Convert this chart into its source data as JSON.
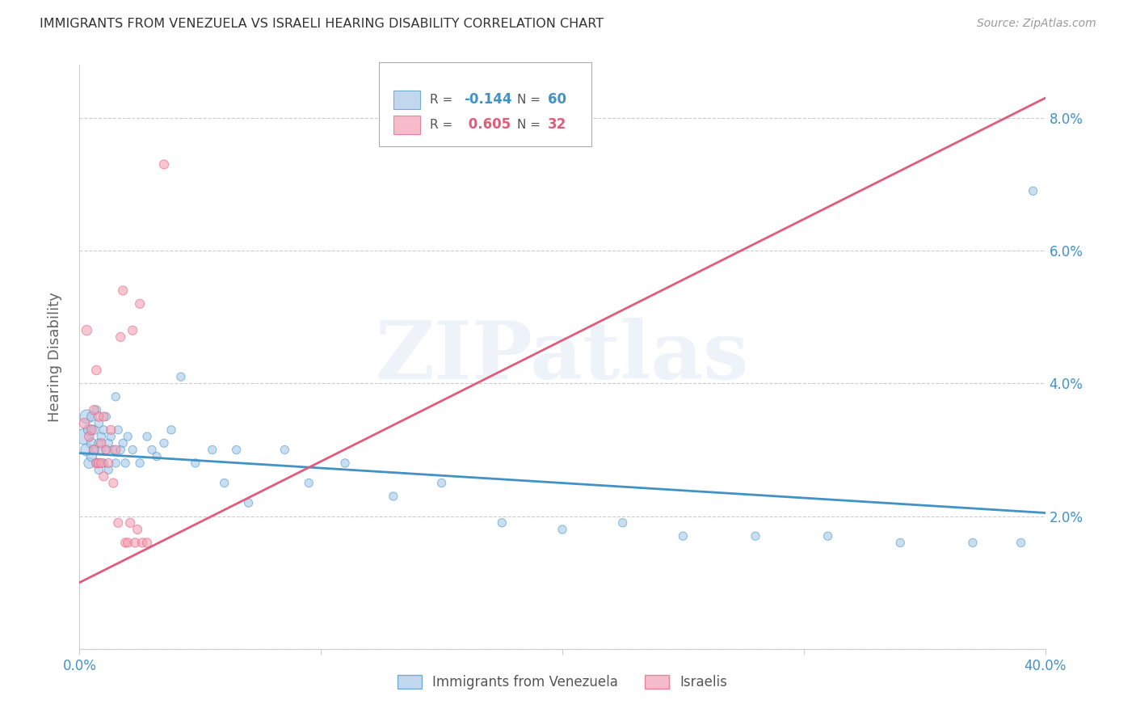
{
  "title": "IMMIGRANTS FROM VENEZUELA VS ISRAELI HEARING DISABILITY CORRELATION CHART",
  "source": "Source: ZipAtlas.com",
  "ylabel": "Hearing Disability",
  "watermark": "ZIPatlas",
  "xlim": [
    0.0,
    0.4
  ],
  "ylim": [
    0.0,
    0.088
  ],
  "xticks": [
    0.0,
    0.1,
    0.2,
    0.3,
    0.4
  ],
  "xtick_labels": [
    "0.0%",
    "",
    "",
    "",
    "40.0%"
  ],
  "yticks": [
    0.0,
    0.02,
    0.04,
    0.06,
    0.08
  ],
  "ytick_labels_right": [
    "",
    "2.0%",
    "4.0%",
    "6.0%",
    "8.0%"
  ],
  "blue_color": "#a8c8e8",
  "pink_color": "#f4a0b5",
  "line_blue": "#4292c6",
  "line_pink": "#e05c7a",
  "blue_scatter_x": [
    0.002,
    0.003,
    0.003,
    0.004,
    0.004,
    0.005,
    0.005,
    0.005,
    0.006,
    0.006,
    0.007,
    0.007,
    0.008,
    0.008,
    0.008,
    0.009,
    0.009,
    0.01,
    0.01,
    0.011,
    0.011,
    0.012,
    0.012,
    0.013,
    0.014,
    0.015,
    0.015,
    0.016,
    0.017,
    0.018,
    0.019,
    0.02,
    0.022,
    0.025,
    0.028,
    0.03,
    0.032,
    0.035,
    0.038,
    0.042,
    0.048,
    0.055,
    0.06,
    0.065,
    0.07,
    0.085,
    0.095,
    0.11,
    0.13,
    0.15,
    0.175,
    0.2,
    0.225,
    0.25,
    0.28,
    0.31,
    0.34,
    0.37,
    0.39,
    0.395
  ],
  "blue_scatter_y": [
    0.032,
    0.035,
    0.03,
    0.033,
    0.028,
    0.031,
    0.035,
    0.029,
    0.033,
    0.03,
    0.036,
    0.028,
    0.031,
    0.034,
    0.027,
    0.032,
    0.03,
    0.033,
    0.028,
    0.035,
    0.03,
    0.031,
    0.027,
    0.032,
    0.03,
    0.038,
    0.028,
    0.033,
    0.03,
    0.031,
    0.028,
    0.032,
    0.03,
    0.028,
    0.032,
    0.03,
    0.029,
    0.031,
    0.033,
    0.041,
    0.028,
    0.03,
    0.025,
    0.03,
    0.022,
    0.03,
    0.025,
    0.028,
    0.023,
    0.025,
    0.019,
    0.018,
    0.019,
    0.017,
    0.017,
    0.017,
    0.016,
    0.016,
    0.016,
    0.069
  ],
  "blue_scatter_s": [
    200,
    150,
    120,
    100,
    90,
    80,
    70,
    80,
    70,
    70,
    60,
    60,
    60,
    60,
    60,
    60,
    55,
    55,
    55,
    55,
    55,
    55,
    55,
    55,
    55,
    55,
    55,
    55,
    55,
    55,
    55,
    55,
    55,
    55,
    55,
    55,
    55,
    55,
    55,
    55,
    55,
    55,
    55,
    55,
    55,
    55,
    55,
    55,
    55,
    55,
    55,
    55,
    55,
    55,
    55,
    55,
    55,
    55,
    55,
    55
  ],
  "pink_scatter_x": [
    0.002,
    0.003,
    0.004,
    0.005,
    0.006,
    0.006,
    0.007,
    0.007,
    0.008,
    0.008,
    0.009,
    0.009,
    0.01,
    0.01,
    0.011,
    0.012,
    0.013,
    0.014,
    0.015,
    0.016,
    0.017,
    0.018,
    0.019,
    0.02,
    0.021,
    0.022,
    0.023,
    0.024,
    0.025,
    0.026,
    0.028,
    0.035
  ],
  "pink_scatter_y": [
    0.034,
    0.048,
    0.032,
    0.033,
    0.03,
    0.036,
    0.028,
    0.042,
    0.028,
    0.035,
    0.028,
    0.031,
    0.026,
    0.035,
    0.03,
    0.028,
    0.033,
    0.025,
    0.03,
    0.019,
    0.047,
    0.054,
    0.016,
    0.016,
    0.019,
    0.048,
    0.016,
    0.018,
    0.052,
    0.016,
    0.016,
    0.073
  ],
  "pink_scatter_s": [
    80,
    80,
    70,
    70,
    70,
    70,
    70,
    70,
    70,
    70,
    65,
    65,
    65,
    65,
    65,
    65,
    65,
    65,
    65,
    65,
    65,
    65,
    65,
    65,
    65,
    65,
    65,
    65,
    65,
    65,
    65,
    65
  ],
  "blue_line_x": [
    0.0,
    0.4
  ],
  "blue_line_y": [
    0.0295,
    0.0205
  ],
  "pink_line_x": [
    0.0,
    0.4
  ],
  "pink_line_y": [
    0.01,
    0.083
  ],
  "background_color": "#ffffff",
  "grid_color": "#cccccc",
  "title_color": "#333333",
  "label_color": "#4292c6",
  "legend_r1_label": "R = ",
  "legend_r1_val": "-0.144",
  "legend_n1_label": "N = ",
  "legend_n1_val": "60",
  "legend_r2_label": "R = ",
  "legend_r2_val": "0.605",
  "legend_n2_label": "N = ",
  "legend_n2_val": "32",
  "bottom_legend_labels": [
    "Immigrants from Venezuela",
    "Israelis"
  ]
}
